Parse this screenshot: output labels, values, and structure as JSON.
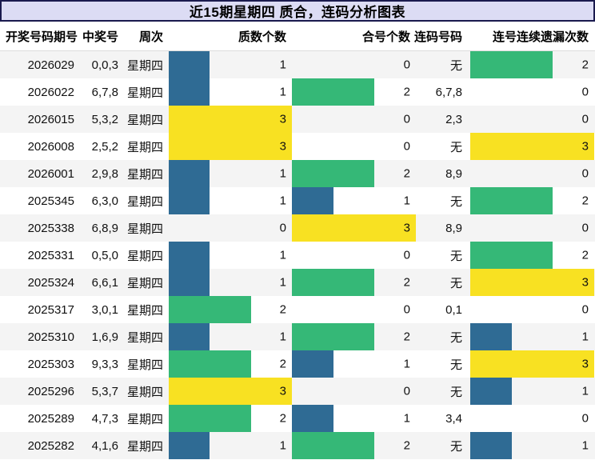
{
  "title": "近15期星期四 质合，连码分析图表",
  "columns": {
    "period": "开奖号码期号",
    "win": "中奖号",
    "week": "周次",
    "prime": "质数个数",
    "composite": "合号个数",
    "liancode": "连码号码",
    "miss": "连号连续遗漏次数"
  },
  "colors": {
    "bar_1": "#2f6b94",
    "bar_2": "#35b877",
    "bar_3": "#f8e122",
    "title_bg": "#dcdcf4",
    "title_border": "#1a1a4e",
    "row_alt_bg": "#f4f4f4"
  },
  "chart_data": {
    "type": "table",
    "title": "近15期星期四 质合，连码分析图表",
    "columns": [
      "开奖号码期号",
      "中奖号",
      "周次",
      "质数个数",
      "合号个数",
      "连码号码",
      "连号连续遗漏次数"
    ],
    "bar_columns": [
      "质数个数",
      "合号个数",
      "连号连续遗漏次数"
    ],
    "bar_value_range": [
      0,
      3
    ],
    "bar_colors_by_value": {
      "1": "#2f6b94",
      "2": "#35b877",
      "3": "#f8e122"
    },
    "rows": [
      [
        "2026029",
        "0,0,3",
        "星期四",
        1,
        0,
        "无",
        2
      ],
      [
        "2026022",
        "6,7,8",
        "星期四",
        1,
        2,
        "6,7,8",
        0
      ],
      [
        "2026015",
        "5,3,2",
        "星期四",
        3,
        0,
        "2,3",
        0
      ],
      [
        "2026008",
        "2,5,2",
        "星期四",
        3,
        0,
        "无",
        3
      ],
      [
        "2026001",
        "2,9,8",
        "星期四",
        1,
        2,
        "8,9",
        0
      ],
      [
        "2025345",
        "6,3,0",
        "星期四",
        1,
        1,
        "无",
        2
      ],
      [
        "2025338",
        "6,8,9",
        "星期四",
        0,
        3,
        "8,9",
        0
      ],
      [
        "2025331",
        "0,5,0",
        "星期四",
        1,
        0,
        "无",
        2
      ],
      [
        "2025324",
        "6,6,1",
        "星期四",
        1,
        2,
        "无",
        3
      ],
      [
        "2025317",
        "3,0,1",
        "星期四",
        2,
        0,
        "0,1",
        0
      ],
      [
        "2025310",
        "1,6,9",
        "星期四",
        1,
        2,
        "无",
        1
      ],
      [
        "2025303",
        "9,3,3",
        "星期四",
        2,
        1,
        "无",
        3
      ],
      [
        "2025296",
        "5,3,7",
        "星期四",
        3,
        0,
        "无",
        1
      ],
      [
        "2025289",
        "4,7,3",
        "星期四",
        2,
        1,
        "3,4",
        0
      ],
      [
        "2025282",
        "4,1,6",
        "星期四",
        1,
        2,
        "无",
        1
      ]
    ]
  }
}
